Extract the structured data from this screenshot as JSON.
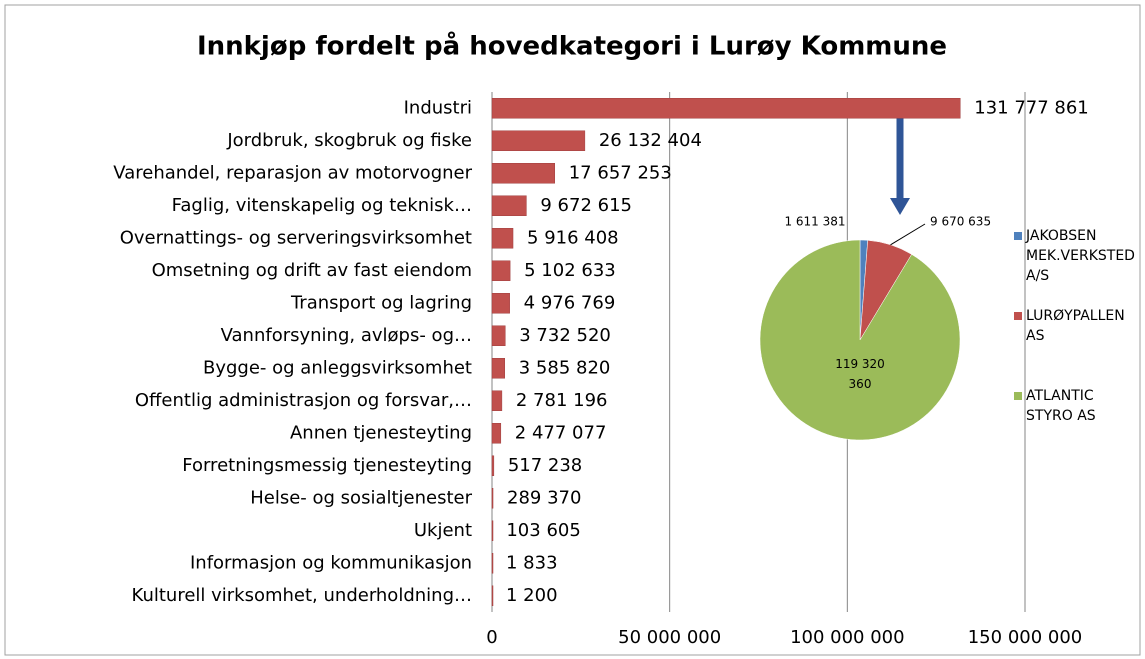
{
  "chart_data": [
    {
      "type": "bar",
      "orientation": "horizontal",
      "title": "Innkjøp fordelt på hovedkategori i Lurøy Kommune",
      "categories": [
        "Industri",
        "Jordbruk, skogbruk og fiske",
        "Varehandel, reparasjon av motorvogner",
        "Faglig, vitenskapelig og teknisk…",
        "Overnattings- og serveringsvirksomhet",
        "Omsetning og drift av fast eiendom",
        "Transport og lagring",
        "Vannforsyning, avløps- og…",
        "Bygge- og anleggsvirksomhet",
        "Offentlig administrasjon og forsvar,…",
        "Annen tjenesteyting",
        "Forretningsmessig tjenesteyting",
        "Helse- og sosialtjenester",
        "Ukjent",
        "Informasjon og kommunikasjon",
        "Kulturell virksomhet, underholdning…"
      ],
      "values": [
        131777861,
        26132404,
        17657253,
        9672615,
        5916408,
        5102633,
        4976769,
        3732520,
        3585820,
        2781196,
        2477077,
        517238,
        289370,
        103605,
        1833,
        1200
      ],
      "value_labels": [
        "131 777 861",
        "26 132 404",
        "17 657 253",
        "9 672 615",
        "5 916 408",
        "5 102 633",
        "4 976 769",
        "3 732 520",
        "3 585 820",
        "2 781 196",
        "2 477 077",
        "517 238",
        "289 370",
        "103 605",
        "1 833",
        "1 200"
      ],
      "color": "#c0504d",
      "xlim": [
        0,
        150000000
      ],
      "xticks": [
        0,
        {
          "value": 50000000,
          "label": "50 000 000"
        },
        {
          "value": 100000000,
          "label": "100 000 000"
        },
        {
          "value": 150000000,
          "label": "150 000 000"
        }
      ],
      "grid": true
    },
    {
      "type": "pie",
      "labels": [
        "JAKOBSEN MEK.VERKSTED A/S",
        "LURØYPALLEN AS",
        "ATLANTIC STYRO AS"
      ],
      "values": [
        1611381,
        9670635,
        119320360
      ],
      "value_labels": [
        "1 611 381",
        "9 670 635",
        "119 320 360"
      ],
      "colors": [
        "#4f81bd",
        "#c0504d",
        "#9bbb59"
      ],
      "legend": "right"
    }
  ]
}
